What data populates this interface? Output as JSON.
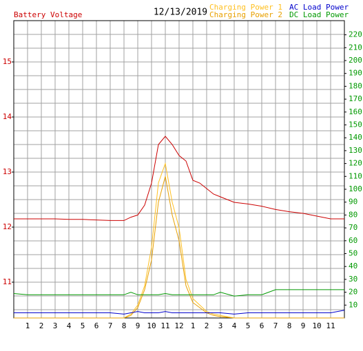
{
  "chart_data": {
    "type": "line",
    "title": "12/13/2019",
    "x": [
      0,
      1,
      2,
      3,
      4,
      5,
      6,
      7,
      8,
      8.5,
      9,
      9.5,
      10,
      10.5,
      11,
      11.5,
      12,
      12.5,
      13,
      13.5,
      14,
      14.5,
      15,
      16,
      17,
      18,
      19,
      20,
      21,
      22,
      23,
      24
    ],
    "xlim": [
      0,
      24
    ],
    "xticks": [
      1,
      2,
      3,
      4,
      5,
      6,
      7,
      8,
      9,
      10,
      11,
      12,
      {
        "value": 13,
        "label": "1"
      },
      {
        "value": 14,
        "label": "2"
      },
      {
        "value": 15,
        "label": "3"
      },
      {
        "value": 16,
        "label": "4"
      },
      {
        "value": 17,
        "label": "5"
      },
      {
        "value": 18,
        "label": "6"
      },
      {
        "value": 19,
        "label": "7"
      },
      {
        "value": 20,
        "label": "8"
      },
      {
        "value": 21,
        "label": "9"
      },
      {
        "value": 22,
        "label": "10"
      },
      {
        "value": 23,
        "label": "11"
      }
    ],
    "ylim": [
      10.35,
      15.75
    ],
    "yticks": [
      11,
      12,
      13,
      14,
      15
    ],
    "ygrid": [
      10.5,
      10.75,
      11,
      11.25,
      11.5,
      11.75,
      12,
      12.25,
      12.5,
      12.75,
      13,
      13.25,
      13.5,
      13.75,
      14,
      14.25,
      14.5,
      14.75,
      15,
      15.25,
      15.5
    ],
    "y2lim": [
      0,
      231
    ],
    "y2ticks": [
      10,
      20,
      30,
      40,
      50,
      60,
      70,
      80,
      90,
      100,
      110,
      120,
      130,
      140,
      150,
      160,
      170,
      180,
      190,
      200,
      210,
      220
    ],
    "grid": true,
    "series": [
      {
        "name": "Battery Voltage",
        "color": "#cc0000",
        "axis": "y",
        "values": [
          12.15,
          12.15,
          12.15,
          12.15,
          12.14,
          12.14,
          12.13,
          12.12,
          12.12,
          12.18,
          12.22,
          12.4,
          12.8,
          13.5,
          13.65,
          13.5,
          13.3,
          13.2,
          12.85,
          12.8,
          12.7,
          12.6,
          12.55,
          12.45,
          12.42,
          12.38,
          12.32,
          12.28,
          12.25,
          12.2,
          12.15,
          12.15
        ]
      },
      {
        "name": "Charging Power 1",
        "color": "#ffc020",
        "axis": "y2",
        "values": [
          0,
          0,
          0,
          0,
          0,
          0,
          0,
          0,
          0,
          3,
          10,
          25,
          55,
          105,
          120,
          90,
          70,
          30,
          15,
          10,
          5,
          3,
          2,
          0,
          0,
          0,
          0,
          0,
          0,
          0,
          0,
          0
        ]
      },
      {
        "name": "Charging Power 2",
        "color": "#e8a000",
        "axis": "y2",
        "values": [
          0,
          0,
          0,
          0,
          0,
          0,
          0,
          0,
          0,
          2,
          8,
          22,
          45,
          90,
          110,
          80,
          60,
          25,
          12,
          8,
          4,
          2,
          1,
          0,
          0,
          0,
          0,
          0,
          0,
          0,
          0,
          0
        ]
      },
      {
        "name": "AC Load Power",
        "color": "#0000cc",
        "axis": "y2",
        "values": [
          4,
          4,
          4,
          4,
          4,
          4,
          4,
          4,
          3,
          4,
          5,
          4,
          4,
          4,
          5,
          4,
          4,
          4,
          4,
          4,
          4,
          4,
          4,
          3,
          4,
          4,
          4,
          4,
          4,
          4,
          4,
          6
        ]
      },
      {
        "name": "DC Load Power",
        "color": "#009900",
        "axis": "y2",
        "values": [
          19,
          18,
          18,
          18,
          18,
          18,
          18,
          18,
          18,
          20,
          18,
          18,
          18,
          18,
          19,
          18,
          18,
          18,
          18,
          18,
          18,
          18,
          20,
          17,
          18,
          18,
          22,
          22,
          22,
          22,
          22,
          22
        ]
      }
    ]
  }
}
